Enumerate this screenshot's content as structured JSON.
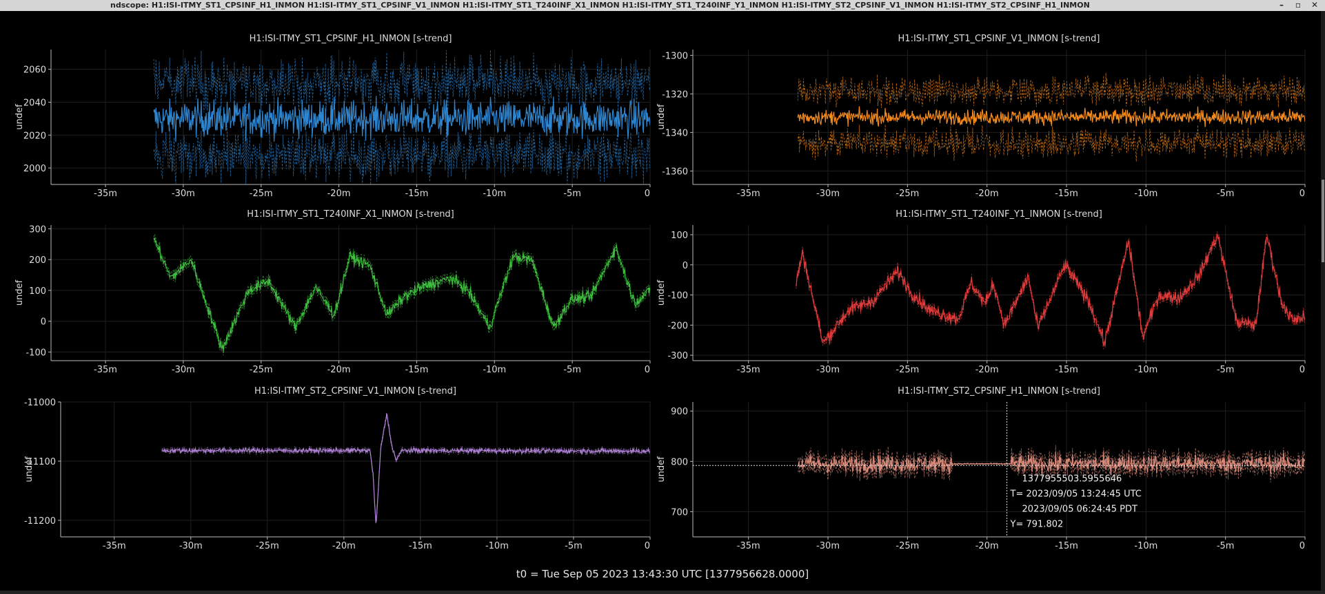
{
  "window": {
    "title": "ndscope: H1:ISI-ITMY_ST1_CPSINF_H1_INMON H1:ISI-ITMY_ST1_CPSINF_V1_INMON H1:ISI-ITMY_ST1_T240INF_X1_INMON H1:ISI-ITMY_ST1_T240INF_Y1_INMON H1:ISI-ITMY_ST2_CPSINF_V1_INMON H1:ISI-ITMY_ST2_CPSINF_H1_INMON",
    "controls": {
      "minimize": "–",
      "restore": "▫",
      "close": "✕"
    }
  },
  "footer": {
    "t0": "t0 = Tue Sep 05 2023 13:43:30 UTC [1377956628.0000]"
  },
  "chart_data": [
    {
      "type": "line",
      "title": "H1:ISI-ITMY_ST1_CPSINF_H1_INMON [s-trend]",
      "ylabel": "undef",
      "color": "#2e86d0",
      "xlim": [
        -38.5,
        0
      ],
      "xticks": [
        -35,
        -30,
        -25,
        -20,
        -15,
        -10,
        -5,
        0
      ],
      "xticklabels": [
        "-35m",
        "-30m",
        "-25m",
        "-20m",
        "-15m",
        "-10m",
        "-5m",
        "0"
      ],
      "ylim": [
        1990,
        2072
      ],
      "yticks": [
        2000,
        2020,
        2040,
        2060
      ],
      "series": {
        "start": -31.9,
        "end": 0,
        "mean": 2030,
        "amp": 14,
        "maxmin": 26,
        "drift": 0,
        "period": 0,
        "noise": 1.0
      }
    },
    {
      "type": "line",
      "title": "H1:ISI-ITMY_ST1_CPSINF_V1_INMON [s-trend]",
      "ylabel": "undef",
      "color": "#f28a1c",
      "xlim": [
        -38.5,
        0
      ],
      "xticks": [
        -35,
        -30,
        -25,
        -20,
        -15,
        -10,
        -5,
        0
      ],
      "xticklabels": [
        "-35m",
        "-30m",
        "-25m",
        "-20m",
        "-15m",
        "-10m",
        "-5m",
        "0"
      ],
      "ylim": [
        -1367,
        -1297
      ],
      "yticks": [
        -1300,
        -1320,
        -1340,
        -1360
      ],
      "series": {
        "start": -31.9,
        "end": 0,
        "mean": -1332,
        "amp": 5,
        "maxmin": 16,
        "drift": 0,
        "period": 0,
        "noise": 1.0
      }
    },
    {
      "type": "line",
      "title": "H1:ISI-ITMY_ST1_T240INF_X1_INMON [s-trend]",
      "ylabel": "undef",
      "color": "#3fbf3f",
      "xlim": [
        -38.5,
        0
      ],
      "xticks": [
        -35,
        -30,
        -25,
        -20,
        -15,
        -10,
        -5,
        0
      ],
      "xticklabels": [
        "-35m",
        "-30m",
        "-25m",
        "-20m",
        "-15m",
        "-10m",
        "-5m",
        "0"
      ],
      "ylim": [
        -128,
        312
      ],
      "yticks": [
        -100,
        0,
        100,
        200,
        300
      ],
      "points": [
        [
          -31.9,
          270
        ],
        [
          -30.8,
          140
        ],
        [
          -29.5,
          200
        ],
        [
          -27.5,
          -90
        ],
        [
          -25.8,
          100
        ],
        [
          -24.5,
          130
        ],
        [
          -22.8,
          -20
        ],
        [
          -21.5,
          110
        ],
        [
          -20.3,
          20
        ],
        [
          -19.3,
          210
        ],
        [
          -18,
          180
        ],
        [
          -16.9,
          20
        ],
        [
          -15.8,
          80
        ],
        [
          -14.7,
          110
        ],
        [
          -12.8,
          140
        ],
        [
          -11.7,
          100
        ],
        [
          -10.3,
          -20
        ],
        [
          -8.8,
          210
        ],
        [
          -7.6,
          200
        ],
        [
          -6.2,
          -20
        ],
        [
          -5.1,
          70
        ],
        [
          -3.8,
          80
        ],
        [
          -2.2,
          240
        ],
        [
          -1,
          60
        ],
        [
          0,
          100
        ]
      ],
      "series": {
        "noise": 12,
        "maxmin": 12
      }
    },
    {
      "type": "line",
      "title": "H1:ISI-ITMY_ST1_T240INF_Y1_INMON [s-trend]",
      "ylabel": "undef",
      "color": "#e03c3c",
      "xlim": [
        -38.5,
        0
      ],
      "xticks": [
        -35,
        -30,
        -25,
        -20,
        -15,
        -10,
        -5,
        0
      ],
      "xticklabels": [
        "-35m",
        "-30m",
        "-25m",
        "-20m",
        "-15m",
        "-10m",
        "-5m",
        "0"
      ],
      "ylim": [
        -318,
        132
      ],
      "yticks": [
        100,
        0,
        -100,
        -200,
        -300
      ],
      "points": [
        [
          -32,
          -60
        ],
        [
          -31.6,
          40
        ],
        [
          -30.3,
          -260
        ],
        [
          -28.7,
          -150
        ],
        [
          -27.2,
          -120
        ],
        [
          -25.6,
          -20
        ],
        [
          -24.8,
          -90
        ],
        [
          -23.6,
          -150
        ],
        [
          -21.8,
          -180
        ],
        [
          -21,
          -60
        ],
        [
          -20.1,
          -130
        ],
        [
          -19.6,
          -60
        ],
        [
          -18.9,
          -200
        ],
        [
          -17.4,
          -40
        ],
        [
          -16.8,
          -210
        ],
        [
          -15.1,
          0
        ],
        [
          -13.6,
          -120
        ],
        [
          -12.6,
          -260
        ],
        [
          -11.1,
          80
        ],
        [
          -10.2,
          -240
        ],
        [
          -9.2,
          -100
        ],
        [
          -7.9,
          -110
        ],
        [
          -6.6,
          -30
        ],
        [
          -5.5,
          100
        ],
        [
          -4.3,
          -190
        ],
        [
          -3.1,
          -200
        ],
        [
          -2.4,
          100
        ],
        [
          -1.5,
          -120
        ],
        [
          -0.7,
          -190
        ],
        [
          0,
          -170
        ]
      ],
      "series": {
        "noise": 15,
        "maxmin": 10
      }
    },
    {
      "type": "line",
      "title": "H1:ISI-ITMY_ST2_CPSINF_V1_INMON [s-trend]",
      "ylabel": "undef",
      "color": "#b184d8",
      "xlim": [
        -38.5,
        0
      ],
      "xticks": [
        -35,
        -30,
        -25,
        -20,
        -15,
        -10,
        -5,
        0
      ],
      "xticklabels": [
        "-35m",
        "-30m",
        "-25m",
        "-20m",
        "-15m",
        "-10m",
        "-5m",
        "0"
      ],
      "ylim": [
        -11228,
        -11000
      ],
      "yticks": [
        -11000,
        -11100,
        -11200
      ],
      "points": [
        [
          -31.9,
          -11082
        ],
        [
          -18.3,
          -11082
        ],
        [
          -18.1,
          -11120
        ],
        [
          -17.9,
          -11212
        ],
        [
          -17.6,
          -11080
        ],
        [
          -17.2,
          -11020
        ],
        [
          -16.9,
          -11070
        ],
        [
          -16.6,
          -11098
        ],
        [
          -16.2,
          -11082
        ],
        [
          0,
          -11083
        ]
      ],
      "series": {
        "noise": 2.5,
        "maxmin": 3
      }
    },
    {
      "type": "line",
      "title": "H1:ISI-ITMY_ST2_CPSINF_H1_INMON [s-trend]",
      "ylabel": "undef",
      "color": "#d88a7a",
      "xlim": [
        -38.5,
        0
      ],
      "xticks": [
        -35,
        -30,
        -25,
        -20,
        -15,
        -10,
        -5,
        0
      ],
      "xticklabels": [
        "-35m",
        "-30m",
        "-25m",
        "-20m",
        "-15m",
        "-10m",
        "-5m",
        "0"
      ],
      "ylim": [
        650,
        918
      ],
      "yticks": [
        900,
        800,
        700
      ],
      "series": {
        "start": -31.9,
        "end": 0,
        "mean": 795,
        "amp": 22,
        "maxmin": 14,
        "quiet": [
          -22.2,
          -18.5
        ],
        "noise": 1.0
      },
      "cursor": {
        "x": -18.75,
        "y": 791.802,
        "lines": [
          "1377955503.5955646",
          "T= 2023/09/05 13:24:45 UTC",
          "2023/09/05 06:24:45 PDT",
          "Y= 791.802"
        ]
      }
    }
  ]
}
